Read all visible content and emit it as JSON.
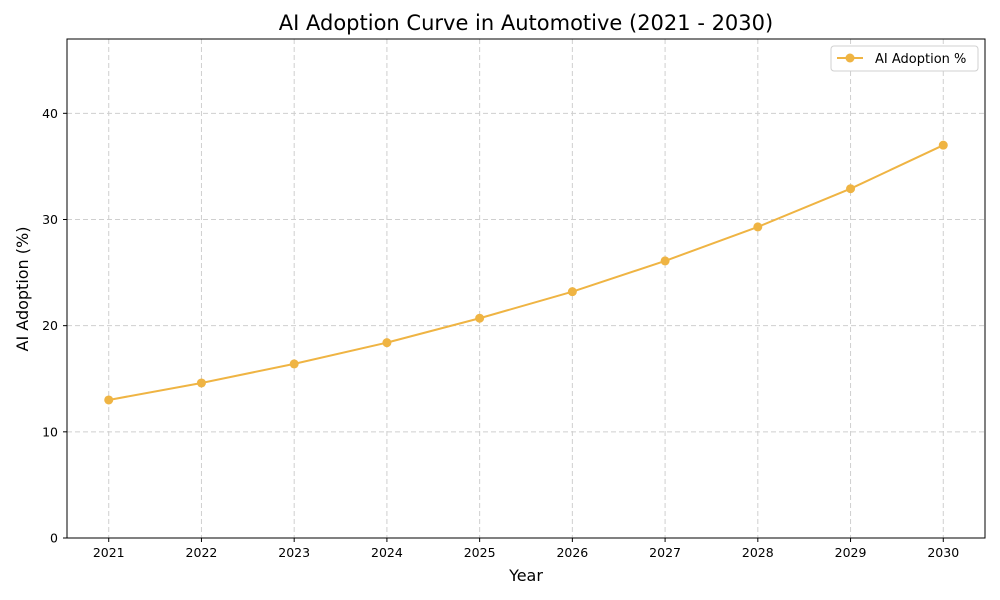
{
  "chart_data": {
    "type": "line",
    "title": "AI Adoption Curve in Automotive (2021 - 2030)",
    "xlabel": "Year",
    "ylabel": "AI Adoption (%)",
    "x": [
      2021,
      2022,
      2023,
      2024,
      2025,
      2026,
      2027,
      2028,
      2029,
      2030
    ],
    "x_tick_labels": [
      "2021",
      "2022",
      "2023",
      "2024",
      "2025",
      "2026",
      "2027",
      "2028",
      "2029",
      "2030"
    ],
    "y_ticks": [
      0,
      10,
      20,
      30,
      40
    ],
    "y_tick_labels": [
      "0",
      "10",
      "20",
      "30",
      "40"
    ],
    "xlim": [
      2020.55,
      2030.45
    ],
    "ylim": [
      0,
      47
    ],
    "grid": true,
    "legend_position": "top-right",
    "series": [
      {
        "name": "AI Adoption %",
        "color": "#efb443",
        "marker": "circle",
        "values": [
          13.0,
          14.6,
          16.4,
          18.4,
          20.7,
          23.2,
          26.1,
          29.3,
          32.9,
          37.0
        ]
      }
    ]
  }
}
